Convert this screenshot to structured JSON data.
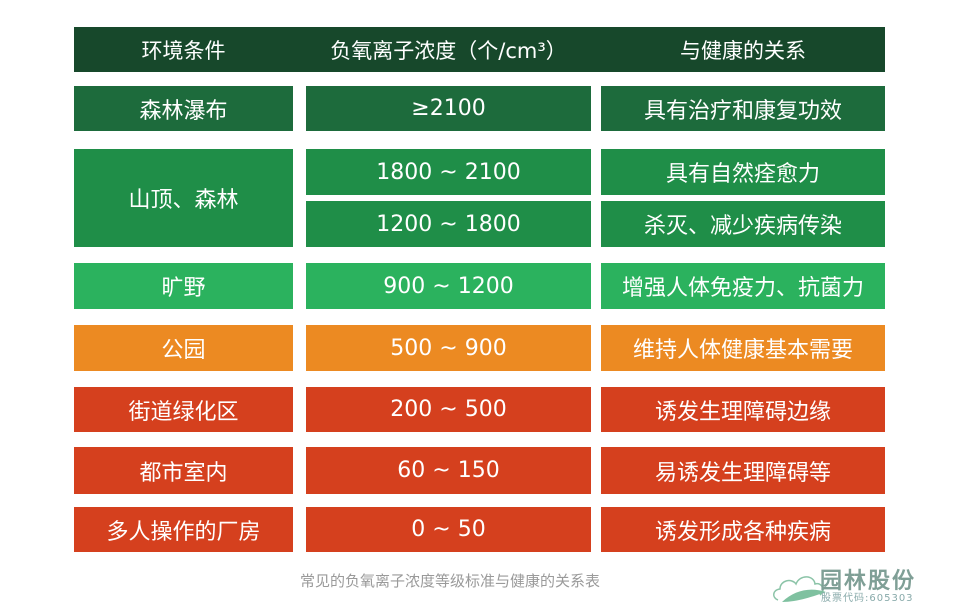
{
  "header": {
    "col1": "环境条件",
    "col2": "负氧离子浓度（个/cm³）",
    "col3": "与健康的关系",
    "color": "#17482b"
  },
  "rows": [
    {
      "env": "森林瀑布",
      "conc": [
        "≥2100"
      ],
      "health": [
        "具有治疗和康复功效"
      ],
      "color": "#1d6b3c"
    },
    {
      "env": "山顶、森林",
      "conc": [
        "1800 ~ 2100",
        "1200 ~ 1800"
      ],
      "health": [
        "具有自然痊愈力",
        "杀灭、减少疾病传染"
      ],
      "color": "#1f8e48"
    },
    {
      "env": "旷野",
      "conc": [
        "900 ~ 1200"
      ],
      "health": [
        "增强人体免疫力、抗菌力"
      ],
      "color": "#2bb25e"
    },
    {
      "env": "公园",
      "conc": [
        "500 ~ 900"
      ],
      "health": [
        "维持人体健康基本需要"
      ],
      "color": "#ec8a22"
    },
    {
      "env": "街道绿化区",
      "conc": [
        "200 ~ 500"
      ],
      "health": [
        "诱发生理障碍边缘"
      ],
      "color": "#d5401e"
    },
    {
      "env": "都市室内",
      "conc": [
        "60 ~ 150"
      ],
      "health": [
        "易诱发生理障碍等"
      ],
      "color": "#d5401e"
    },
    {
      "env": "多人操作的厂房",
      "conc": [
        "0 ~ 50"
      ],
      "health": [
        "诱发形成各种疾病"
      ],
      "color": "#d5401e"
    }
  ],
  "caption": "常见的负氧离子浓度等级标准与健康的关系表",
  "logo": {
    "name": "园林股份",
    "code": "股票代码:605303"
  }
}
